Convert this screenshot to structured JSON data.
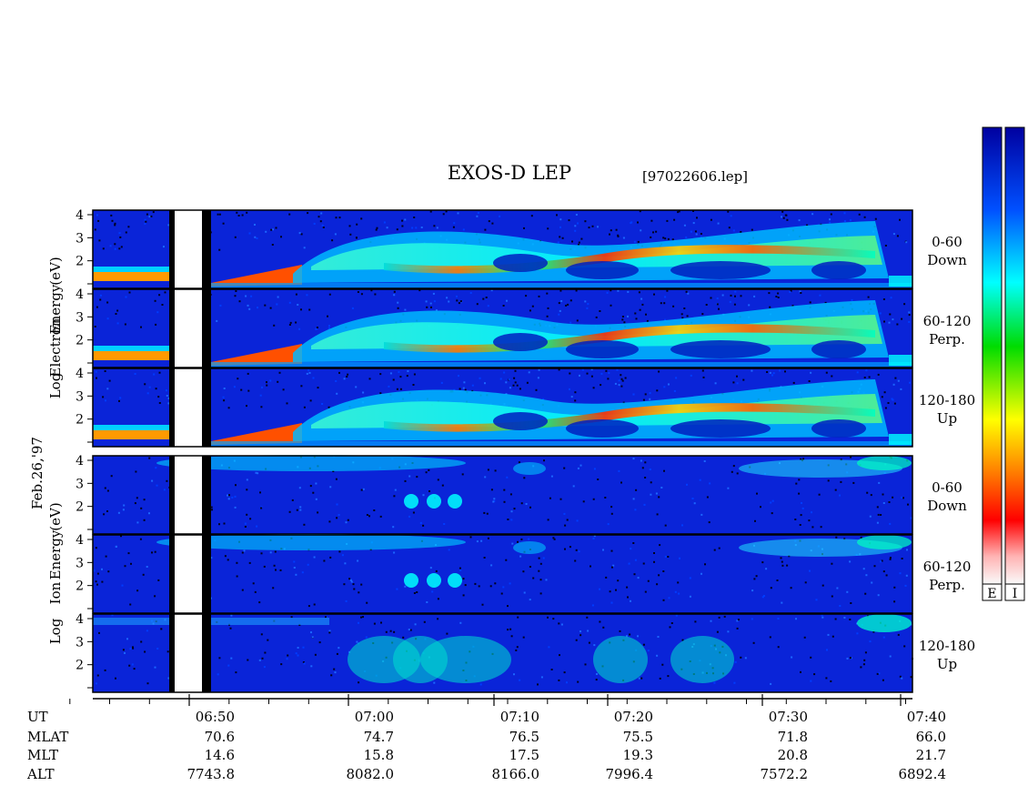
{
  "title": "EXOS-D LEP",
  "file_label": "[97022606.lep]",
  "date_label": "Feb.26,'97",
  "electron_ylabel": [
    "Log",
    "Electron",
    "Energy",
    "(eV)"
  ],
  "ion_ylabel": [
    "Log",
    "Ion",
    "Energy",
    "(eV)"
  ],
  "colorbar_labels": [
    "E",
    "I"
  ],
  "chart_data": {
    "type": "heatmap",
    "title": "EXOS-D LEP",
    "x_axis": {
      "labels": [
        "06:50",
        "07:00",
        "07:10",
        "07:20",
        "07:30",
        "07:40"
      ],
      "minor_tick_interval_min": 2.5
    },
    "panel_ylim": [
      1,
      4
    ],
    "panel_yticks": [
      "4",
      "3",
      "2",
      ""
    ],
    "panels": [
      {
        "species": "Electron",
        "pitch_angle": "0-60",
        "direction": "Down"
      },
      {
        "species": "Electron",
        "pitch_angle": "60-120",
        "direction": "Perp."
      },
      {
        "species": "Electron",
        "pitch_angle": "120-180",
        "direction": "Up"
      },
      {
        "species": "Ion",
        "pitch_angle": "0-60",
        "direction": "Down"
      },
      {
        "species": "Ion",
        "pitch_angle": "60-120",
        "direction": "Perp."
      },
      {
        "species": "Ion",
        "pitch_angle": "120-180",
        "direction": "Up"
      }
    ],
    "orbit_table": {
      "rows": [
        {
          "label": "UT",
          "values": [
            "06:50",
            "07:00",
            "07:10",
            "07:20",
            "07:30",
            "07:40"
          ]
        },
        {
          "label": "MLAT",
          "values": [
            "70.6",
            "74.7",
            "76.5",
            "75.5",
            "71.8",
            "66.0"
          ]
        },
        {
          "label": "MLT",
          "values": [
            "14.6",
            "15.8",
            "17.5",
            "19.3",
            "20.8",
            "21.7"
          ]
        },
        {
          "label": "ALT",
          "values": [
            "7743.8",
            "8082.0",
            "8166.0",
            "7996.4",
            "7572.2",
            "6892.4"
          ]
        }
      ]
    },
    "colorbar": {
      "colors": [
        "#fafafa",
        "#ffb4b4",
        "#ff0000",
        "#ff7800",
        "#ffff00",
        "#00dc00",
        "#00ffff",
        "#0050ff",
        "#0000a0"
      ]
    }
  }
}
